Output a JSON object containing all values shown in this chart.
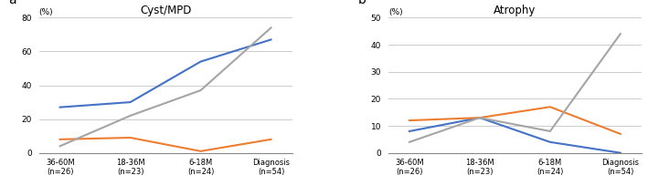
{
  "panel_a": {
    "title": "Cyst/MPD",
    "ylim": [
      0,
      80
    ],
    "yticks": [
      0,
      20,
      40,
      60,
      80
    ],
    "x_labels": [
      "36-60M\n(n=26)",
      "18-36M\n(n=23)",
      "6-18M\n(n=24)",
      "Diagnosis\n(n=54)"
    ],
    "blue_line": [
      27,
      30,
      54,
      67
    ],
    "orange_line": [
      8,
      9,
      1,
      8
    ],
    "gray_line": [
      4,
      22,
      37,
      74
    ]
  },
  "panel_b": {
    "title": "Atrophy",
    "ylim": [
      0,
      50
    ],
    "yticks": [
      0,
      10,
      20,
      30,
      40,
      50
    ],
    "x_labels": [
      "36-60M\n(n=26)",
      "18-36M\n(n=23)",
      "6-18M\n(n=24)",
      "Diagnosis\n(n=54)"
    ],
    "blue_line": [
      8,
      13,
      4,
      0
    ],
    "orange_line": [
      12,
      13,
      17,
      7
    ],
    "gray_line": [
      4,
      13,
      8,
      44
    ]
  },
  "blue_color": "#4472C4",
  "orange_color": "#ED7D31",
  "gray_color": "#A5A5A5",
  "line_width": 1.5,
  "marker_size": 3,
  "label_a": "a",
  "label_b": "b",
  "bg_color": "#FFFFFF",
  "grid_color": "#CCCCCC",
  "ylabel_text": "(%)"
}
